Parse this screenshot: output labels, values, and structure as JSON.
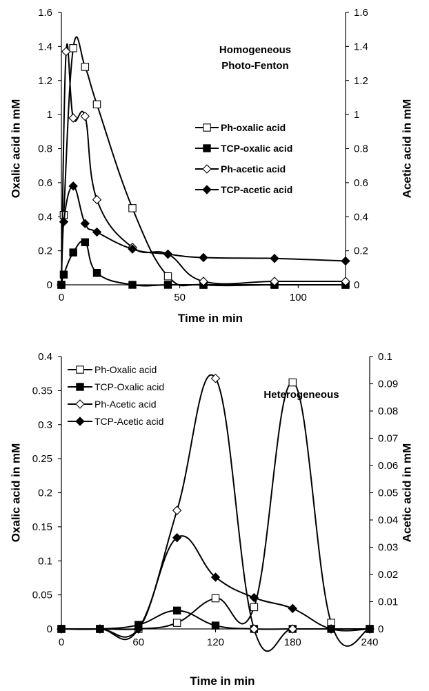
{
  "chart_data": [
    {
      "type": "line",
      "annotation": [
        "Homogeneous",
        "Photo-Fenton"
      ],
      "xlabel": "Time in min",
      "ylabel": "Oxalic acid in mM",
      "y2label": "Acetic acid in mM",
      "xlim": [
        0,
        120
      ],
      "ylim": [
        0,
        1.6
      ],
      "y2lim": [
        0,
        1.6
      ],
      "xticks": [
        "0",
        "50",
        "100"
      ],
      "yticks": [
        "0",
        "0.2",
        "0.4",
        "0.6",
        "0.8",
        "1",
        "1.2",
        "1.4",
        "1.6"
      ],
      "y2ticks": [
        "0",
        "0.2",
        "0.4",
        "0.6",
        "0.8",
        "1",
        "1.2",
        "1.4",
        "1.6"
      ],
      "legend_position": "middle-right",
      "series": [
        {
          "name": "Ph-oxalic acid",
          "axis": "left",
          "marker": "square-open",
          "x": [
            0,
            1,
            5,
            10,
            15,
            30,
            45,
            60,
            90,
            120
          ],
          "y": [
            0,
            0.41,
            1.39,
            1.28,
            1.06,
            0.45,
            0.05,
            0,
            0,
            0
          ]
        },
        {
          "name": "TCP-oxalic acid",
          "axis": "left",
          "marker": "square-filled",
          "x": [
            0,
            1,
            5,
            10,
            15,
            30,
            45,
            60,
            90,
            120
          ],
          "y": [
            0,
            0.06,
            0.19,
            0.25,
            0.07,
            0,
            0,
            0,
            0,
            0
          ]
        },
        {
          "name": "Ph-acetic acid",
          "axis": "right",
          "marker": "diamond-open",
          "x": [
            0,
            2,
            5,
            10,
            15,
            30,
            45,
            60,
            90,
            120
          ],
          "y": [
            0,
            1.37,
            0.98,
            0.99,
            0.5,
            0.22,
            0.18,
            0.02,
            0.02,
            0.02
          ]
        },
        {
          "name": "TCP-acetic acid",
          "axis": "right",
          "marker": "diamond-filled",
          "x": [
            0,
            1,
            5,
            10,
            15,
            30,
            45,
            60,
            90,
            120
          ],
          "y": [
            0,
            0.37,
            0.58,
            0.36,
            0.31,
            0.21,
            0.18,
            0.16,
            0.155,
            0.14
          ]
        }
      ]
    },
    {
      "type": "line",
      "annotation": [
        "Heterogeneous"
      ],
      "xlabel": "Time in  min",
      "ylabel": "Oxalic acid in mM",
      "y2label": "Acetic acid in mM",
      "xlim": [
        0,
        240
      ],
      "ylim": [
        0,
        0.4
      ],
      "y2lim": [
        0,
        0.1
      ],
      "xticks": [
        "0",
        "60",
        "120",
        "180",
        "240"
      ],
      "yticks": [
        "0",
        "0.05",
        "0.1",
        "0.15",
        "0.2",
        "0.25",
        "0.3",
        "0.35",
        "0.4"
      ],
      "y2ticks": [
        "0",
        "0.01",
        "0.02",
        "0.03",
        "0.04",
        "0.05",
        "0.06",
        "0.07",
        "0.08",
        "0.09",
        "0.1"
      ],
      "legend_position": "top-left",
      "series": [
        {
          "name": "Ph-Oxalic acid",
          "axis": "left",
          "marker": "square-open",
          "x": [
            0,
            30,
            60,
            90,
            120,
            150,
            180,
            210,
            240
          ],
          "y": [
            0,
            0,
            0,
            0.009,
            0.045,
            0.032,
            0.362,
            0.009,
            0
          ]
        },
        {
          "name": "TCP-Oxalic acid",
          "axis": "left",
          "marker": "square-filled",
          "x": [
            0,
            30,
            60,
            90,
            120,
            150,
            180,
            210,
            240
          ],
          "y": [
            0,
            0,
            0.006,
            0.027,
            0.005,
            0,
            0,
            0,
            0
          ]
        },
        {
          "name": "Ph-Acetic acid",
          "axis": "right",
          "marker": "diamond-open",
          "x": [
            0,
            30,
            60,
            90,
            120,
            150,
            180,
            210,
            240
          ],
          "y": [
            0,
            0,
            0,
            0.0435,
            0.092,
            0,
            0,
            0,
            0
          ]
        },
        {
          "name": "TCP-Acetic acid",
          "axis": "right",
          "marker": "diamond-filled",
          "x": [
            0,
            30,
            60,
            90,
            120,
            150,
            180,
            210,
            240
          ],
          "y": [
            0,
            0,
            0,
            0.0335,
            0.019,
            0.0115,
            0.0075,
            0,
            0
          ]
        }
      ]
    }
  ]
}
